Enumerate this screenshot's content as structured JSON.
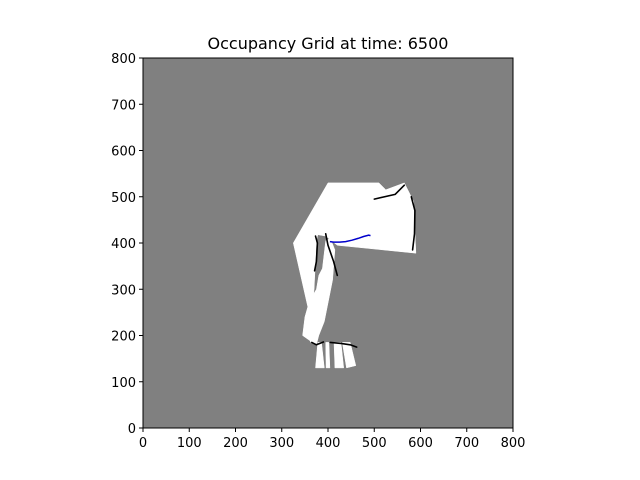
{
  "chart_data": {
    "type": "heatmap",
    "title": "Occupancy Grid at time: 6500",
    "xlabel": "",
    "ylabel": "",
    "xlim": [
      0,
      800
    ],
    "ylim": [
      0,
      800
    ],
    "xticks": [
      0,
      100,
      200,
      300,
      400,
      500,
      600,
      700,
      800
    ],
    "yticks": [
      0,
      100,
      200,
      300,
      400,
      500,
      600,
      700,
      800
    ],
    "grid": false,
    "legend": "none",
    "colors": {
      "unknown": "#808080",
      "free": "#ffffff",
      "occupied": "#000000",
      "trajectory": "#0000cc",
      "frame": "#000000"
    },
    "free_regions": [
      [
        [
          325,
          400
        ],
        [
          400,
          530
        ],
        [
          510,
          530
        ],
        [
          525,
          515
        ],
        [
          565,
          530
        ],
        [
          585,
          490
        ],
        [
          590,
          378
        ],
        [
          420,
          395
        ],
        [
          395,
          415
        ],
        [
          378,
          418
        ],
        [
          375,
          405
        ],
        [
          370,
          300
        ],
        [
          360,
          210
        ],
        [
          362,
          186
        ],
        [
          375,
          180
        ]
      ],
      [
        [
          375,
          180
        ],
        [
          365,
          186
        ],
        [
          345,
          200
        ],
        [
          350,
          240
        ],
        [
          360,
          275
        ],
        [
          375,
          300
        ],
        [
          380,
          330
        ],
        [
          388,
          345
        ],
        [
          395,
          405
        ],
        [
          405,
          410
        ],
        [
          415,
          385
        ],
        [
          410,
          320
        ],
        [
          400,
          270
        ],
        [
          392,
          230
        ],
        [
          380,
          200
        ]
      ]
    ],
    "legs": [
      [
        [
          378,
          185
        ],
        [
          386,
          185
        ],
        [
          392,
          130
        ],
        [
          373,
          130
        ]
      ],
      [
        [
          395,
          185
        ],
        [
          402,
          185
        ],
        [
          404,
          130
        ],
        [
          396,
          130
        ]
      ],
      [
        [
          413,
          185
        ],
        [
          428,
          185
        ],
        [
          434,
          130
        ],
        [
          415,
          130
        ]
      ],
      [
        [
          431,
          185
        ],
        [
          448,
          185
        ],
        [
          460,
          135
        ],
        [
          440,
          130
        ]
      ]
    ],
    "obstacles": [
      [
        [
          373,
          415
        ],
        [
          377,
          400
        ],
        [
          375,
          360
        ],
        [
          371,
          340
        ]
      ],
      [
        [
          395,
          420
        ],
        [
          400,
          395
        ],
        [
          412,
          360
        ],
        [
          420,
          330
        ]
      ],
      [
        [
          500,
          495
        ],
        [
          545,
          505
        ],
        [
          565,
          525
        ]
      ],
      [
        [
          580,
          500
        ],
        [
          588,
          470
        ],
        [
          587,
          420
        ],
        [
          583,
          385
        ]
      ],
      [
        [
          405,
          185
        ],
        [
          428,
          183
        ],
        [
          448,
          180
        ],
        [
          462,
          175
        ]
      ],
      [
        [
          365,
          185
        ],
        [
          375,
          180
        ],
        [
          390,
          186
        ]
      ]
    ],
    "trajectory": {
      "x": [
        404,
        412,
        425,
        438,
        452,
        465,
        477,
        488,
        492
      ],
      "y": [
        403,
        402,
        402,
        403,
        406,
        410,
        414,
        417,
        416
      ]
    }
  }
}
